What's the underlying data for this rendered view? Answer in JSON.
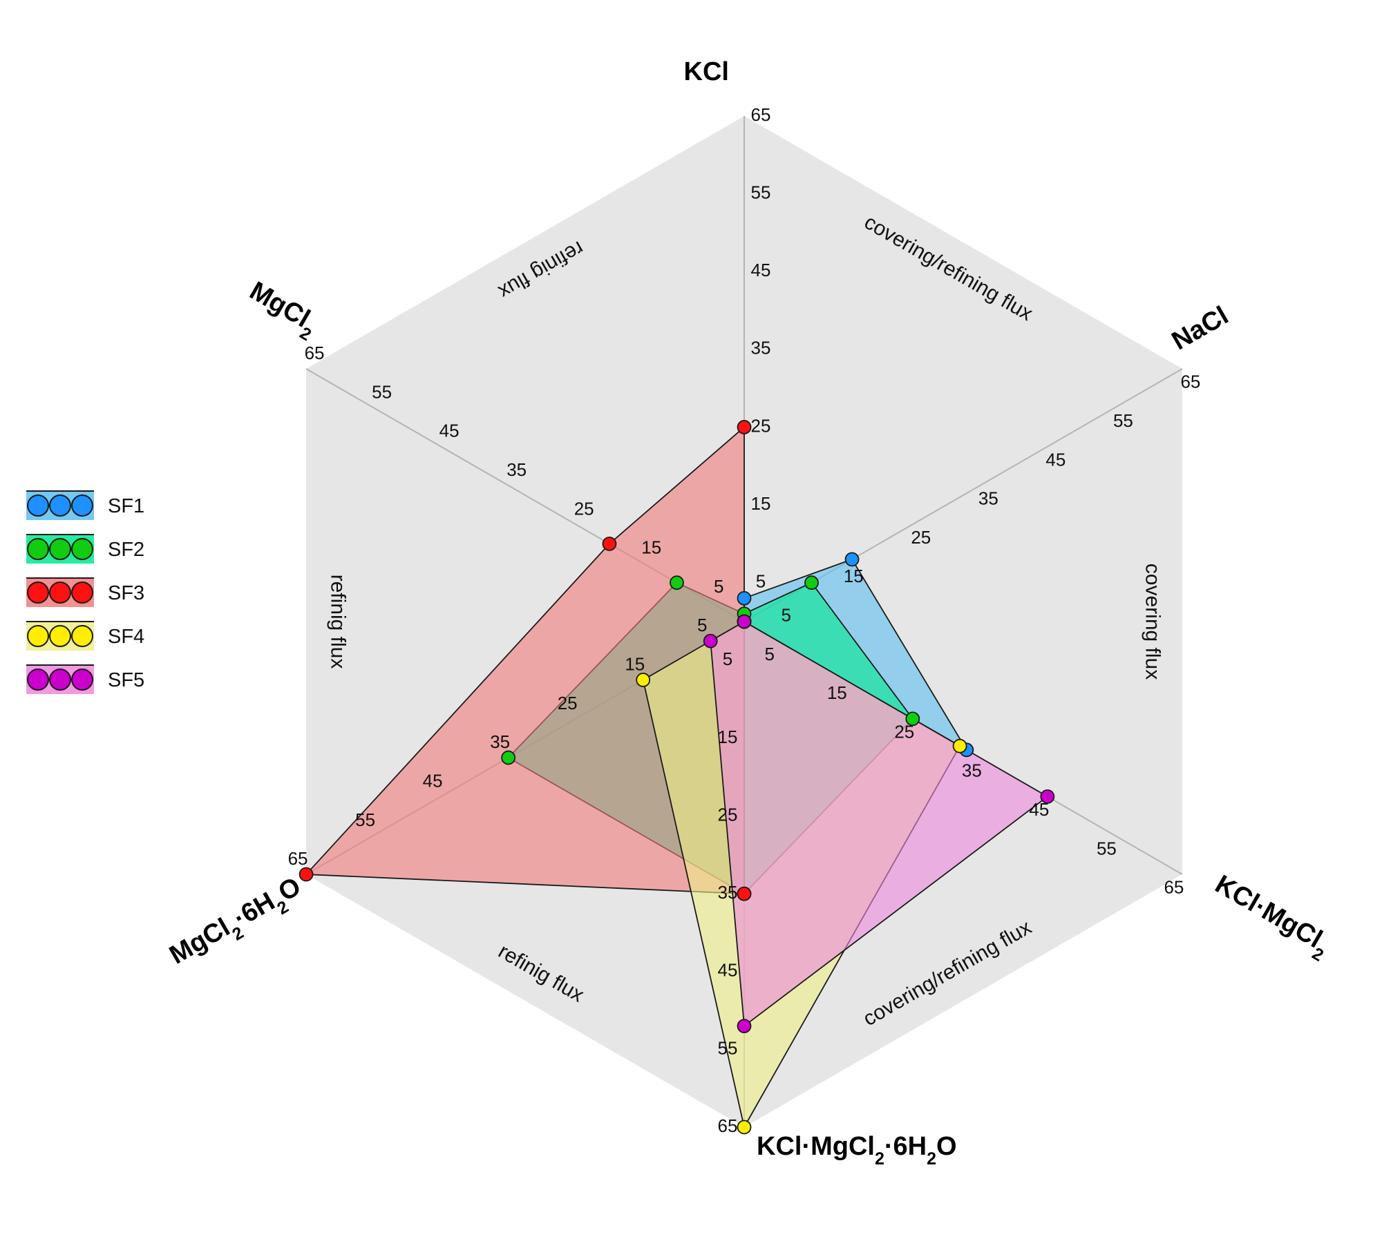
{
  "chart_data": {
    "type": "radar",
    "axes": [
      {
        "label": "KCl"
      },
      {
        "label": "NaCl"
      },
      {
        "label": "KCl·MgCl",
        "sub": "2",
        "tail": ""
      },
      {
        "label": "KCl·MgCl",
        "sub": "2",
        "tail": "·6H",
        "sub2": "2",
        "tail2": "O"
      },
      {
        "label": "MgCl",
        "sub": "2",
        "tail": "·6H",
        "sub2": "2",
        "tail2": "O"
      },
      {
        "label": "MgCl",
        "sub": "2",
        "tail": ""
      }
    ],
    "range": [
      0,
      65
    ],
    "ticks": [
      5,
      15,
      25,
      35,
      45,
      55,
      65
    ],
    "region_labels": [
      "covering/refining flux",
      "covering flux",
      "covering/refining flux",
      "refinig flux",
      "refinig flux",
      "refinig flux"
    ],
    "series": [
      {
        "name": "SF1",
        "values": [
          3,
          16,
          33,
          0,
          0,
          0
        ],
        "color": "#1e90ff",
        "fill": "#5bc0f0"
      },
      {
        "name": "SF2",
        "values": [
          1,
          10,
          25,
          35,
          35,
          10
        ],
        "color": "#11cc11",
        "fill": "#00e890"
      },
      {
        "name": "SF3",
        "values": [
          25,
          0,
          0,
          35,
          65,
          20
        ],
        "color": "#ff1111",
        "fill": "#f27c7c"
      },
      {
        "name": "SF4",
        "values": [
          0,
          0,
          32,
          65,
          15,
          0
        ],
        "color": "#ffee00",
        "fill": "#eeee88"
      },
      {
        "name": "SF5",
        "values": [
          0,
          0,
          45,
          52,
          5,
          0
        ],
        "color": "#cc00cc",
        "fill": "#ee88dd"
      }
    ],
    "legend": {
      "position": "left",
      "entries": [
        "SF1",
        "SF2",
        "SF3",
        "SF4",
        "SF5"
      ]
    },
    "grid": true
  }
}
